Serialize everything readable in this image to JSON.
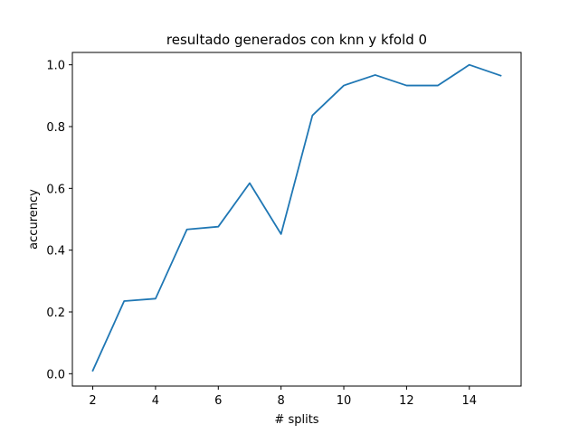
{
  "chart_data": {
    "type": "line",
    "title": "resultado generados con knn y kfold 0",
    "xlabel": "# splits",
    "ylabel": "accurency",
    "xlim": [
      1.35,
      15.65
    ],
    "ylim": [
      -0.04,
      1.04
    ],
    "xticks": [
      2,
      4,
      6,
      8,
      10,
      12,
      14
    ],
    "yticks": [
      0.0,
      0.2,
      0.4,
      0.6,
      0.8,
      1.0
    ],
    "xtick_labels": [
      "2",
      "4",
      "6",
      "8",
      "10",
      "12",
      "14"
    ],
    "ytick_labels": [
      "0.0",
      "0.2",
      "0.4",
      "0.6",
      "0.8",
      "1.0"
    ],
    "grid": false,
    "legend": "none",
    "series": [
      {
        "color": "#1f77b4",
        "x": [
          2,
          3,
          4,
          5,
          6,
          7,
          8,
          9,
          10,
          11,
          12,
          13,
          14,
          15
        ],
        "y": [
          0.01,
          0.235,
          0.243,
          0.467,
          0.476,
          0.617,
          0.452,
          0.836,
          0.933,
          0.967,
          0.933,
          0.933,
          1.0,
          0.965
        ]
      }
    ]
  }
}
